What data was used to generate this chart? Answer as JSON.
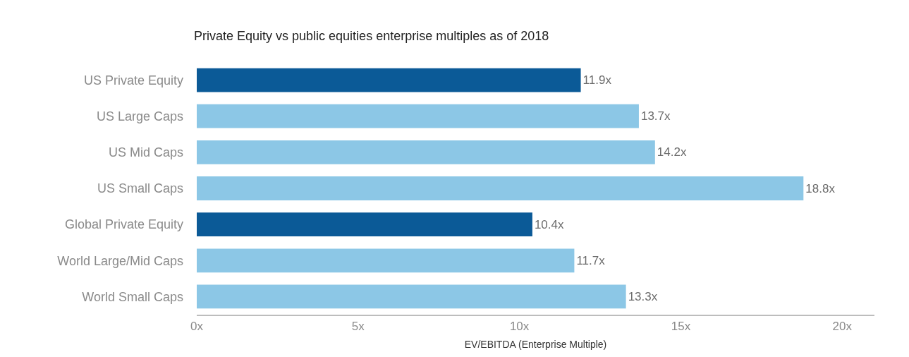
{
  "chart_data": {
    "type": "bar",
    "orientation": "horizontal",
    "title": "Private Equity vs public equities enterprise multiples as of 2018",
    "xlabel": "EV/EBITDA (Enterprise Multiple)",
    "categories": [
      "US Private Equity",
      "US Large Caps",
      "US Mid Caps",
      "US Small Caps",
      "Global Private Equity",
      "World Large/Mid Caps",
      "World Small Caps"
    ],
    "values": [
      11.9,
      13.7,
      14.2,
      18.8,
      10.4,
      11.7,
      13.3
    ],
    "value_labels": [
      "11.9x",
      "13.7x",
      "14.2x",
      "18.8x",
      "10.4x",
      "11.7x",
      "13.3x"
    ],
    "colors": [
      "#0b5a97",
      "#8cc7e6",
      "#8cc7e6",
      "#8cc7e6",
      "#0b5a97",
      "#8cc7e6",
      "#8cc7e6"
    ],
    "xlim": [
      0,
      21
    ],
    "xticks": [
      {
        "value": 0,
        "label": "0x"
      },
      {
        "value": 5,
        "label": "5x"
      },
      {
        "value": 10,
        "label": "10x"
      },
      {
        "value": 15,
        "label": "15x"
      },
      {
        "value": 20,
        "label": "20x"
      }
    ],
    "grid": false,
    "legend": false
  }
}
